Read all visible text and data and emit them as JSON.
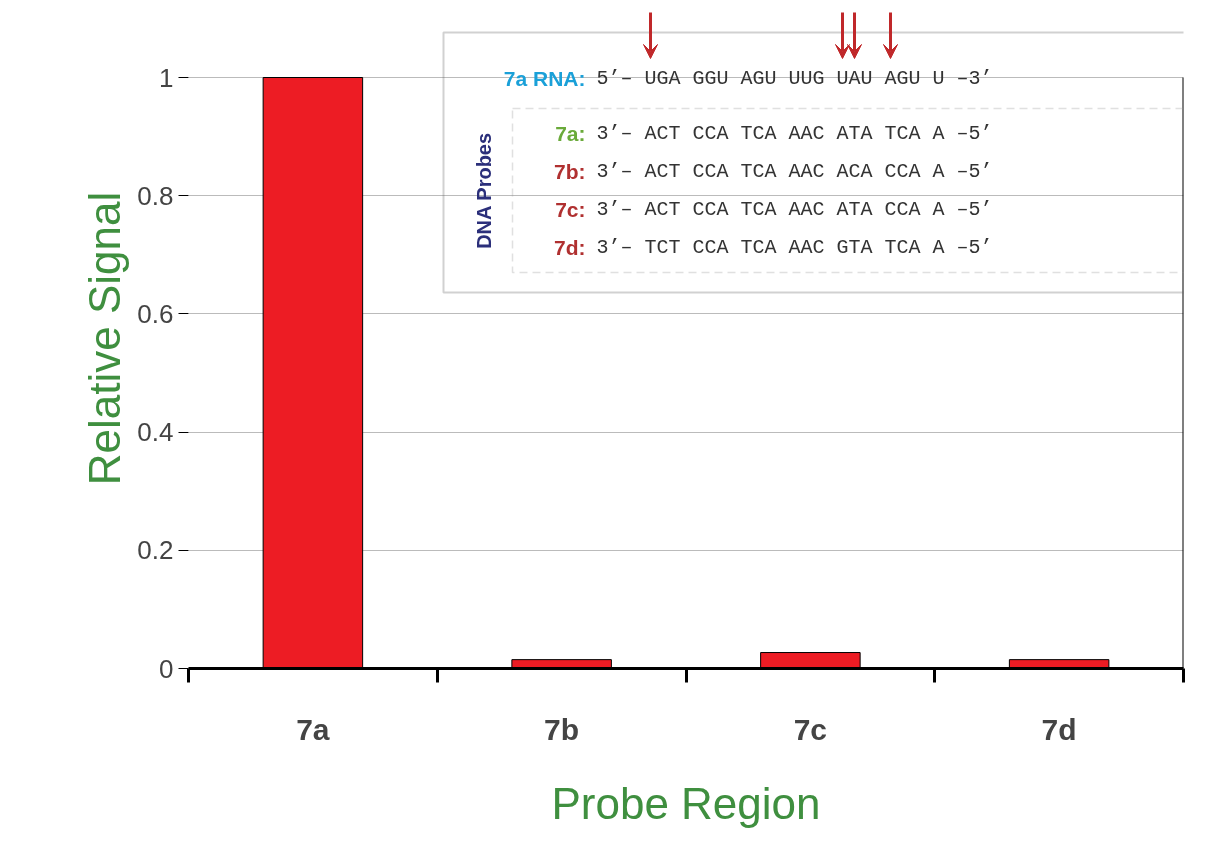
{
  "chart_data": {
    "type": "bar",
    "xlabel": "Probe Region",
    "ylabel": "Relative Signal",
    "categories": [
      "7a",
      "7b",
      "7c",
      "7d"
    ],
    "values": [
      1,
      0.015,
      0.027,
      0.015
    ],
    "color": "#ed1c24",
    "ylim": [
      0,
      1
    ],
    "yticks": [
      0,
      0.2,
      0.4,
      0.6,
      0.8,
      1
    ],
    "grid": "y",
    "annotations": [
      "7a RNA:",
      "5’– UGA GGU AGU UUG UAU AGU U –3’",
      "DNA Probes",
      "7a:",
      "3’– ACT CCA TCA AAC ATA TCA A –5’",
      "7b:",
      "3’– ACT CCA TCA AAC ACA CCA A –5’",
      "7c:",
      "3’– ACT CCA TCA AAC ATA CCA A –5’",
      "7d:",
      "3’– TCT CCA TCA AAC GTA TCA A –5’"
    ]
  }
}
